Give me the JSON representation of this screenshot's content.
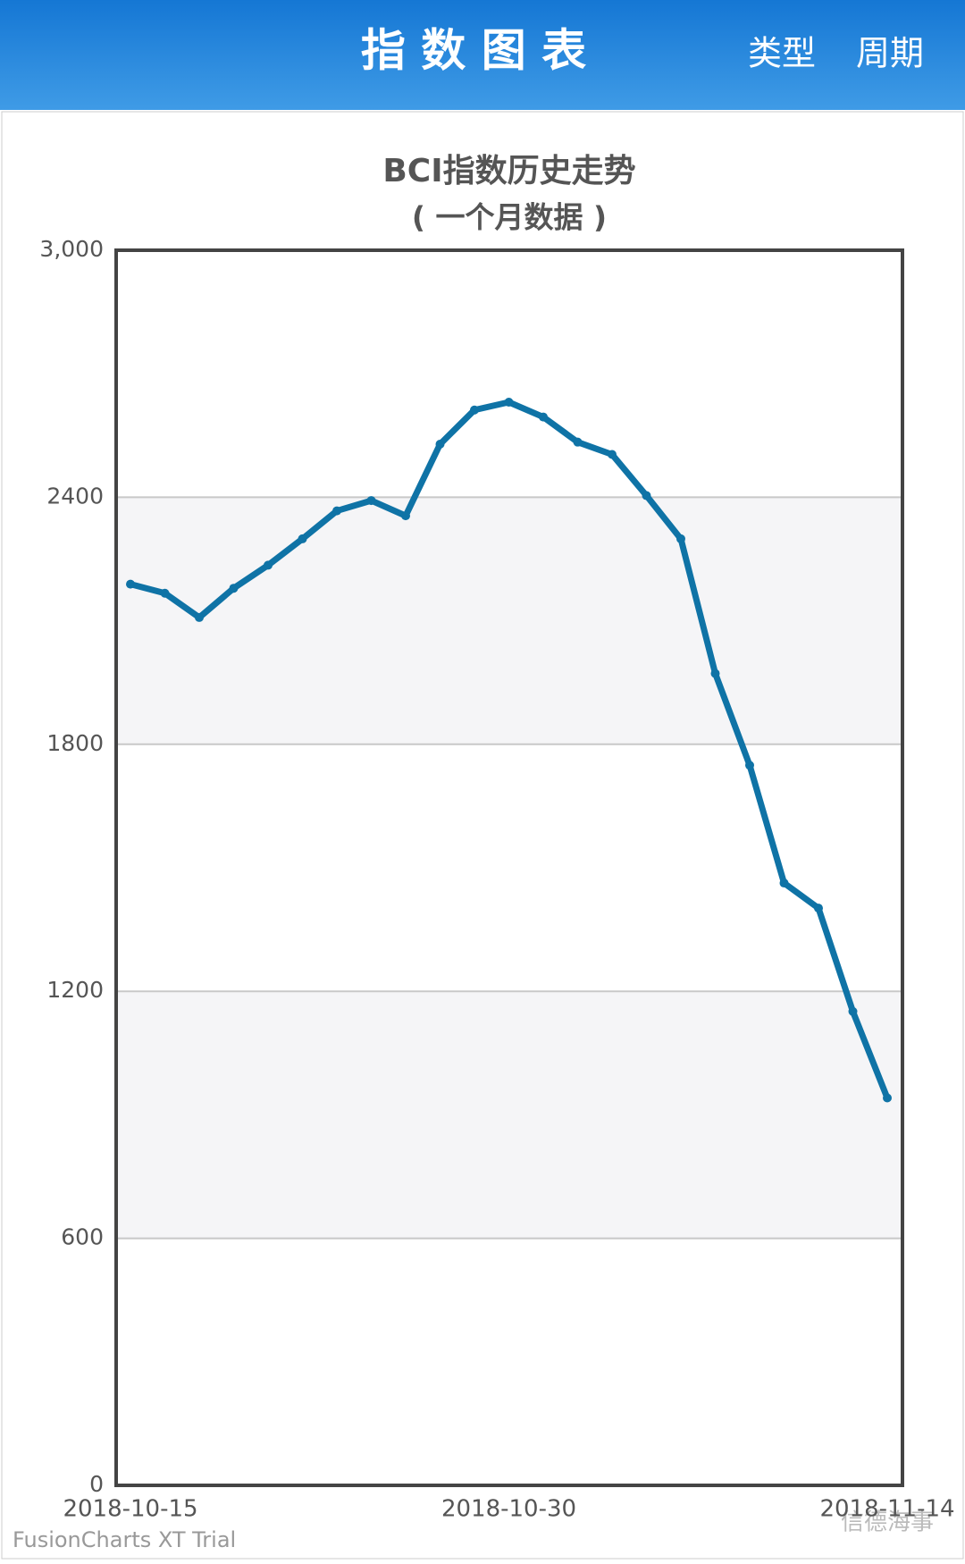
{
  "header": {
    "title": "指 数 图 表",
    "actions": [
      "类型",
      "周期"
    ]
  },
  "chart_data": {
    "type": "line",
    "title": "BCI指数历史走势",
    "subtitle": "( 一个月数据 )",
    "categories": [
      "2018-10-15",
      null,
      null,
      null,
      null,
      null,
      null,
      null,
      null,
      null,
      null,
      "2018-10-30",
      null,
      null,
      null,
      null,
      null,
      null,
      null,
      null,
      null,
      null,
      "2018-11-14"
    ],
    "values": [
      2189,
      2167,
      2108,
      2179,
      2235,
      2299,
      2367,
      2392,
      2355,
      2529,
      2612,
      2631,
      2595,
      2534,
      2504,
      2404,
      2299,
      1972,
      1749,
      1463,
      1402,
      1151,
      941
    ],
    "color": "#0f73a6",
    "ylim": [
      0,
      3000
    ],
    "yticks": [
      0,
      600,
      1200,
      1800,
      2400,
      {
        "value": 3000,
        "label": "3,000"
      }
    ],
    "grid": true
  },
  "footer": {
    "trial": "FusionCharts XT Trial",
    "watermark": "信德海事"
  }
}
